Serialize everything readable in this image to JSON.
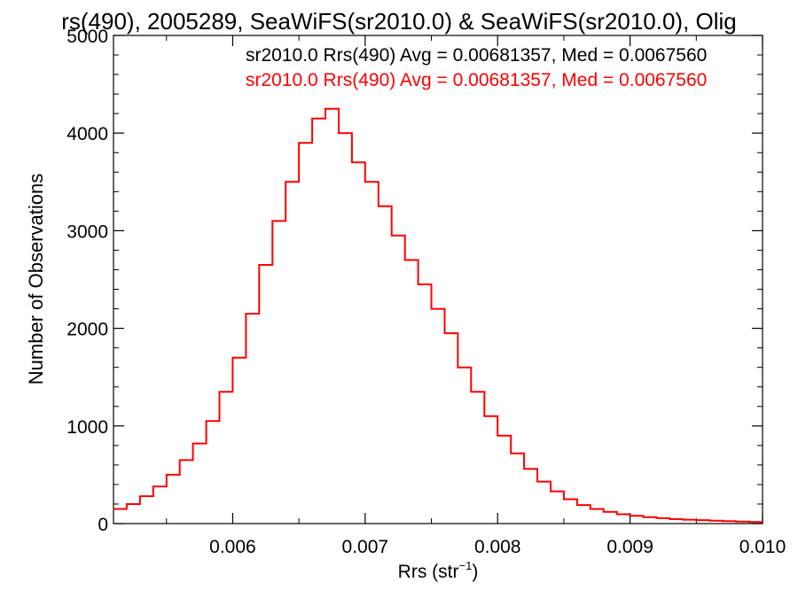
{
  "chart_data": {
    "type": "line",
    "title": "rs(490), 2005289, SeaWiFS(sr2010.0) & SeaWiFS(sr2010.0), Olig",
    "xlabel": "Rrs (str",
    "xlabel_sup": "−1",
    "xlabel_close": ")",
    "ylabel": "Number of Observations",
    "xlim": [
      0.0051,
      0.01
    ],
    "ylim": [
      0,
      5000
    ],
    "x_ticks": [
      {
        "value": 0.006,
        "label": "0.006"
      },
      {
        "value": 0.007,
        "label": "0.007"
      },
      {
        "value": 0.008,
        "label": "0.008"
      },
      {
        "value": 0.009,
        "label": "0.009"
      },
      {
        "value": 0.01,
        "label": "0.010"
      }
    ],
    "y_ticks": [
      {
        "value": 0,
        "label": "0"
      },
      {
        "value": 1000,
        "label": "1000"
      },
      {
        "value": 2000,
        "label": "2000"
      },
      {
        "value": 3000,
        "label": "3000"
      },
      {
        "value": 4000,
        "label": "4000"
      },
      {
        "value": 5000,
        "label": "5000"
      }
    ],
    "legend": [
      {
        "text": "sr2010.0 Rrs(490) Avg = 0.00681357, Med = 0.0067560",
        "color": "#000000"
      },
      {
        "text": "sr2010.0 Rrs(490) Avg = 0.00681357, Med = 0.0067560",
        "color": "#ff0000"
      }
    ],
    "legend_placement": "top-right",
    "grid": false,
    "series": [
      {
        "color": "#ff0000",
        "style": "step",
        "x": [
          0.0051,
          0.0052,
          0.0053,
          0.0054,
          0.0055,
          0.0056,
          0.0057,
          0.0058,
          0.0059,
          0.006,
          0.0061,
          0.0062,
          0.0063,
          0.0064,
          0.0065,
          0.0066,
          0.0067,
          0.0068,
          0.0069,
          0.007,
          0.0071,
          0.0072,
          0.0073,
          0.0074,
          0.0075,
          0.0076,
          0.0077,
          0.0078,
          0.0079,
          0.008,
          0.0081,
          0.0082,
          0.0083,
          0.0084,
          0.0085,
          0.0086,
          0.0087,
          0.0088,
          0.0089,
          0.009,
          0.0091,
          0.0092,
          0.0093,
          0.0094,
          0.0095,
          0.0096,
          0.0097,
          0.0098,
          0.0099,
          0.01
        ],
        "y": [
          150,
          200,
          280,
          380,
          500,
          650,
          820,
          1050,
          1350,
          1700,
          2150,
          2650,
          3100,
          3500,
          3900,
          4150,
          4250,
          4000,
          3700,
          3500,
          3250,
          2950,
          2700,
          2450,
          2200,
          1950,
          1600,
          1350,
          1100,
          900,
          720,
          560,
          430,
          330,
          250,
          190,
          150,
          120,
          95,
          80,
          65,
          55,
          45,
          40,
          35,
          30,
          25,
          20,
          15,
          10
        ]
      }
    ]
  }
}
